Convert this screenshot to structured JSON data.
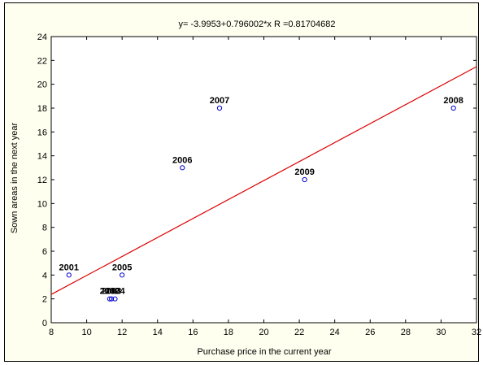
{
  "chart_data": {
    "type": "scatter",
    "title": "y= -3.9953+0.796002*x   R =0.81704682",
    "xlabel": "Purchase price in the current year",
    "ylabel": "Sown areas in the next year",
    "xlim": [
      8,
      32
    ],
    "ylim": [
      0,
      24
    ],
    "xticks": [
      8,
      10,
      12,
      14,
      16,
      18,
      20,
      22,
      24,
      26,
      28,
      30,
      32
    ],
    "yticks": [
      0,
      2,
      4,
      6,
      8,
      10,
      12,
      14,
      16,
      18,
      20,
      22,
      24
    ],
    "grid": false,
    "points": [
      {
        "label": "2001",
        "x": 9.0,
        "y": 4
      },
      {
        "label": "2002",
        "x": 11.3,
        "y": 2
      },
      {
        "label": "2003",
        "x": 11.4,
        "y": 2
      },
      {
        "label": "2004",
        "x": 11.6,
        "y": 2
      },
      {
        "label": "2005",
        "x": 12.0,
        "y": 4
      },
      {
        "label": "2006",
        "x": 15.4,
        "y": 13
      },
      {
        "label": "2007",
        "x": 17.5,
        "y": 18
      },
      {
        "label": "2008",
        "x": 30.7,
        "y": 18
      },
      {
        "label": "2009",
        "x": 22.3,
        "y": 12
      }
    ],
    "regression": {
      "intercept": -3.9953,
      "slope": 0.796002
    },
    "colors": {
      "points": "#0000cc",
      "line": "#dd0000",
      "background": "#fffff0"
    }
  }
}
